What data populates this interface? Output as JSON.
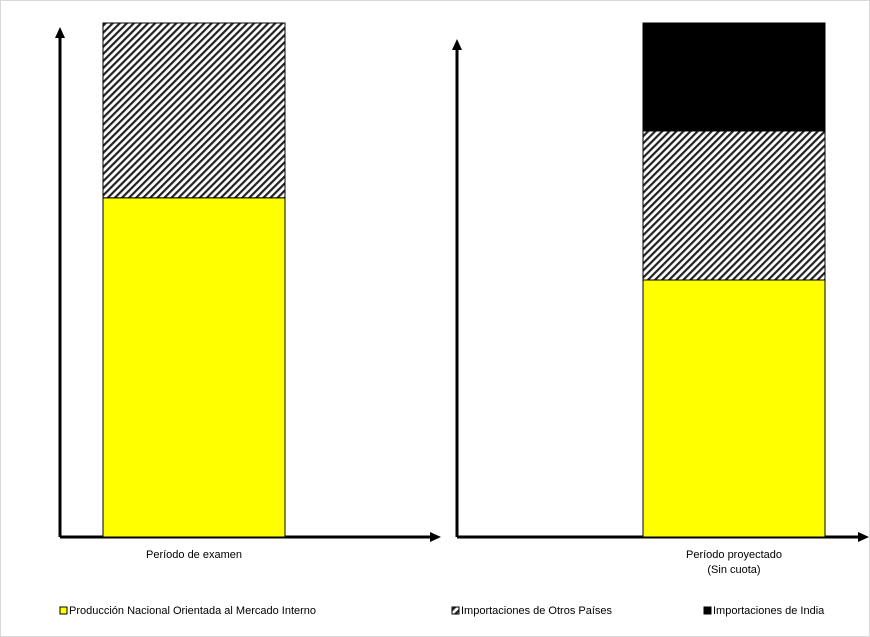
{
  "chart_data": {
    "type": "bar",
    "stacked": true,
    "categories": [
      "Período de examen",
      "Período proyectado (Sin cuota)"
    ],
    "category_lines": [
      [
        "Período de examen"
      ],
      [
        "Período proyectado",
        "(Sin cuota)"
      ]
    ],
    "series": [
      {
        "name": "Producción Nacional Orientada al Mercado Interno",
        "values": [
          66,
          50
        ],
        "color": "#ffff00",
        "pattern": "solid"
      },
      {
        "name": "Importaciones de Otros Países",
        "values": [
          34,
          29
        ],
        "color": "#666666",
        "pattern": "diagonal-hatch"
      },
      {
        "name": "Importaciones de India",
        "values": [
          0,
          21
        ],
        "color": "#000000",
        "pattern": "solid"
      }
    ],
    "title": "",
    "xlabel": "",
    "ylabel": "",
    "ylim": [
      0,
      100
    ],
    "grid": false,
    "legend_position": "bottom",
    "axes": "separate-y-axis-per-category-with-arrows"
  }
}
